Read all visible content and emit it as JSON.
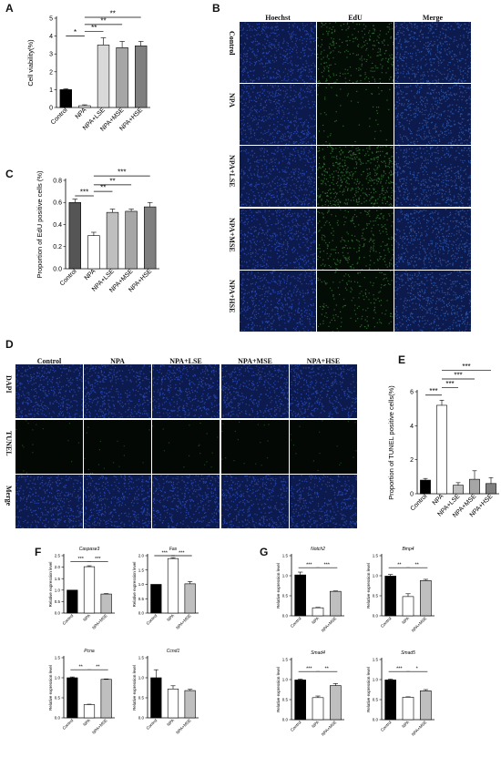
{
  "panels": {
    "A": {
      "letter": "A"
    },
    "B": {
      "letter": "B",
      "columns": [
        "Hoechst",
        "EdU",
        "Merge"
      ],
      "rows": [
        "Control",
        "NPA",
        "NPA+LSE",
        "NPA+MSE",
        "NPA+HSE"
      ]
    },
    "C": {
      "letter": "C"
    },
    "D": {
      "letter": "D",
      "columns": [
        "Control",
        "NPA",
        "NPA+LSE",
        "NPA+MSE",
        "NPA+HSE"
      ],
      "rows": [
        "DAPI",
        "TUNEL",
        "Merge"
      ]
    },
    "E": {
      "letter": "E"
    },
    "F": {
      "letter": "F"
    },
    "G": {
      "letter": "G"
    }
  },
  "colors": {
    "hoechst": "#1f3a8a",
    "edu": "#1f5a2a",
    "tunel": "#0b1a0e",
    "black": "#000000"
  },
  "chart_data": [
    {
      "id": "A",
      "type": "bar",
      "ylabel": "Cell viability(%)",
      "ylim": [
        0,
        5
      ],
      "yticks": [
        0,
        1,
        2,
        3,
        4,
        5
      ],
      "categories": [
        "Control",
        "NPA",
        "NPA+LSE",
        "NPA+MSE",
        "NPA+HSE"
      ],
      "values": [
        1.0,
        0.1,
        3.5,
        3.35,
        3.45
      ],
      "errors": [
        0.05,
        0.05,
        0.4,
        0.35,
        0.25
      ],
      "colors": [
        "#000000",
        "#ffffff",
        "#d9d9d9",
        "#a6a6a6",
        "#7f7f7f"
      ],
      "sig": [
        {
          "from": 0,
          "to": 1,
          "label": "*",
          "y": 4.0
        },
        {
          "from": 1,
          "to": 2,
          "label": "**",
          "y": 4.25
        },
        {
          "from": 1,
          "to": 3,
          "label": "**",
          "y": 4.65
        },
        {
          "from": 1,
          "to": 4,
          "label": "**",
          "y": 5.05
        }
      ]
    },
    {
      "id": "C",
      "type": "bar",
      "ylabel": "Proportion of EdU positive cells (%)",
      "ylim": [
        0,
        0.8
      ],
      "yticks": [
        0.0,
        0.2,
        0.4,
        0.6,
        0.8
      ],
      "categories": [
        "Control",
        "NPA",
        "NPA+LSE",
        "NPA+MSE",
        "NPA+HSE"
      ],
      "values": [
        0.6,
        0.3,
        0.51,
        0.52,
        0.56
      ],
      "errors": [
        0.03,
        0.03,
        0.03,
        0.02,
        0.04
      ],
      "colors": [
        "#555555",
        "#ffffff",
        "#bfbfbf",
        "#a6a6a6",
        "#7f7f7f"
      ],
      "sig": [
        {
          "from": 0,
          "to": 1,
          "label": "***",
          "y": 0.66
        },
        {
          "from": 1,
          "to": 2,
          "label": "**",
          "y": 0.7
        },
        {
          "from": 1,
          "to": 3,
          "label": "**",
          "y": 0.76
        },
        {
          "from": 1,
          "to": 4,
          "label": "***",
          "y": 0.84
        }
      ]
    },
    {
      "id": "E",
      "type": "bar",
      "ylabel": "Proportion of TUNEL positive cells(%)",
      "ylim": [
        0,
        6
      ],
      "yticks": [
        0,
        2,
        4,
        6
      ],
      "categories": [
        "Control",
        "NPA",
        "NPA+LSE",
        "NPA+MSE",
        "NPA+HSE"
      ],
      "values": [
        0.8,
        5.2,
        0.5,
        0.85,
        0.6
      ],
      "errors": [
        0.1,
        0.3,
        0.15,
        0.5,
        0.35
      ],
      "colors": [
        "#000000",
        "#ffffff",
        "#bfbfbf",
        "#a6a6a6",
        "#7f7f7f"
      ],
      "sig": [
        {
          "from": 0,
          "to": 1,
          "label": "***",
          "y": 5.8
        },
        {
          "from": 1,
          "to": 2,
          "label": "***",
          "y": 6.25
        },
        {
          "from": 1,
          "to": 3,
          "label": "***",
          "y": 6.75
        },
        {
          "from": 1,
          "to": 4,
          "label": "***",
          "y": 7.25
        }
      ]
    },
    {
      "id": "F1",
      "type": "bar",
      "title": "Caspase3",
      "ylabel": "Relative expression level",
      "ylim": [
        0,
        2.5
      ],
      "yticks": [
        0.0,
        0.5,
        1.0,
        1.5,
        2.0,
        2.5
      ],
      "categories": [
        "Control",
        "NPA",
        "NPA+MSE"
      ],
      "values": [
        1.0,
        2.02,
        0.83
      ],
      "errors": [
        0.0,
        0.04,
        0.02
      ],
      "colors": [
        "#000000",
        "#ffffff",
        "#bfbfbf"
      ],
      "sig": [
        {
          "from": 0,
          "to": 1,
          "label": "***",
          "y": 2.25
        },
        {
          "from": 1,
          "to": 2,
          "label": "***",
          "y": 2.25
        }
      ]
    },
    {
      "id": "F2",
      "type": "bar",
      "title": "Fas",
      "ylabel": "Relative expression level",
      "ylim": [
        0,
        2.0
      ],
      "yticks": [
        0.0,
        0.5,
        1.0,
        1.5,
        2.0
      ],
      "categories": [
        "Control",
        "NPA",
        "NPA+MSE"
      ],
      "values": [
        1.0,
        1.9,
        1.02
      ],
      "errors": [
        0.0,
        0.03,
        0.08
      ],
      "colors": [
        "#000000",
        "#ffffff",
        "#bfbfbf"
      ],
      "sig": [
        {
          "from": 0,
          "to": 1,
          "label": "***",
          "y": 2.0
        },
        {
          "from": 1,
          "to": 2,
          "label": "***",
          "y": 2.0
        }
      ]
    },
    {
      "id": "F3",
      "type": "bar",
      "title": "Pcna",
      "ylabel": "Relative expression level",
      "ylim": [
        0,
        1.5
      ],
      "yticks": [
        0.0,
        0.5,
        1.0,
        1.5
      ],
      "categories": [
        "Control",
        "NPA",
        "NPA+MSE"
      ],
      "values": [
        1.0,
        0.33,
        0.96
      ],
      "errors": [
        0.02,
        0.01,
        0.01
      ],
      "colors": [
        "#000000",
        "#ffffff",
        "#bfbfbf"
      ],
      "sig": [
        {
          "from": 0,
          "to": 1,
          "label": "**",
          "y": 1.2
        },
        {
          "from": 1,
          "to": 2,
          "label": "**",
          "y": 1.2
        }
      ]
    },
    {
      "id": "F4",
      "type": "bar",
      "title": "Ccnd1",
      "ylabel": "Relative expression level",
      "ylim": [
        0,
        1.5
      ],
      "yticks": [
        0.0,
        0.5,
        1.0,
        1.5
      ],
      "categories": [
        "Control",
        "NPA",
        "NPA+MSE"
      ],
      "values": [
        1.0,
        0.72,
        0.68
      ],
      "errors": [
        0.2,
        0.08,
        0.03
      ],
      "colors": [
        "#000000",
        "#ffffff",
        "#bfbfbf"
      ],
      "sig": []
    },
    {
      "id": "G1",
      "type": "bar",
      "title": "Notch2",
      "ylabel": "Relative expression level",
      "ylim": [
        0,
        1.5
      ],
      "yticks": [
        0.0,
        0.5,
        1.0,
        1.5
      ],
      "categories": [
        "Control",
        "NPA",
        "NPA+MSE"
      ],
      "values": [
        1.02,
        0.2,
        0.61
      ],
      "errors": [
        0.07,
        0.01,
        0.01
      ],
      "colors": [
        "#000000",
        "#ffffff",
        "#bfbfbf"
      ],
      "sig": [
        {
          "from": 0,
          "to": 1,
          "label": "***",
          "y": 1.2
        },
        {
          "from": 1,
          "to": 2,
          "label": "***",
          "y": 1.2
        }
      ]
    },
    {
      "id": "G2",
      "type": "bar",
      "title": "Bmp4",
      "ylabel": "Relative expression level",
      "ylim": [
        0,
        1.5
      ],
      "yticks": [
        0.0,
        0.5,
        1.0,
        1.5
      ],
      "categories": [
        "Control",
        "NPA",
        "NPA+MSE"
      ],
      "values": [
        0.99,
        0.48,
        0.88
      ],
      "errors": [
        0.04,
        0.07,
        0.03
      ],
      "colors": [
        "#000000",
        "#ffffff",
        "#bfbfbf"
      ],
      "sig": [
        {
          "from": 0,
          "to": 1,
          "label": "**",
          "y": 1.2
        },
        {
          "from": 1,
          "to": 2,
          "label": "**",
          "y": 1.2
        }
      ]
    },
    {
      "id": "G3",
      "type": "bar",
      "title": "Smad4",
      "ylabel": "Relative expression level",
      "ylim": [
        0,
        1.5
      ],
      "yticks": [
        0.0,
        0.5,
        1.0,
        1.5
      ],
      "categories": [
        "Control",
        "NPA",
        "NPA+MSE"
      ],
      "values": [
        0.99,
        0.55,
        0.85
      ],
      "errors": [
        0.02,
        0.04,
        0.05
      ],
      "colors": [
        "#000000",
        "#ffffff",
        "#bfbfbf"
      ],
      "sig": [
        {
          "from": 0,
          "to": 1,
          "label": "***",
          "y": 1.2
        },
        {
          "from": 1,
          "to": 2,
          "label": "**",
          "y": 1.2
        }
      ]
    },
    {
      "id": "G4",
      "type": "bar",
      "title": "Smad5",
      "ylabel": "Relative expression level",
      "ylim": [
        0,
        1.5
      ],
      "yticks": [
        0.0,
        0.5,
        1.0,
        1.5
      ],
      "categories": [
        "Control",
        "NPA",
        "NPA+MSE"
      ],
      "values": [
        0.99,
        0.56,
        0.72
      ],
      "errors": [
        0.02,
        0.01,
        0.03
      ],
      "colors": [
        "#000000",
        "#ffffff",
        "#bfbfbf"
      ],
      "sig": [
        {
          "from": 0,
          "to": 1,
          "label": "***",
          "y": 1.2
        },
        {
          "from": 1,
          "to": 2,
          "label": "*",
          "y": 1.2
        }
      ]
    }
  ]
}
